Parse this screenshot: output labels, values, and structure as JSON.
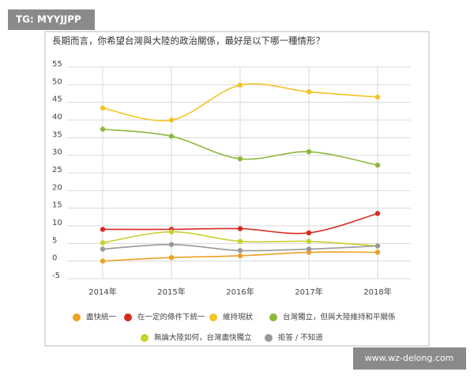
{
  "watermark": "TG: MYYJJPP",
  "site": "www.wz-delong.com",
  "chart_data": {
    "type": "line",
    "title": "長期而言，你希望台灣與大陸的政治關係，最好是以下哪一種情形？",
    "categories": [
      "2014年",
      "2015年",
      "2016年",
      "2017年",
      "2018年"
    ],
    "ylim": [
      -5,
      55
    ],
    "yticks": [
      -5,
      0,
      5,
      10,
      15,
      20,
      25,
      30,
      35,
      40,
      45,
      50,
      55
    ],
    "grid": true,
    "series": [
      {
        "name": "盡快統一",
        "color": "#eca024",
        "values": [
          0,
          1,
          1.5,
          2.5,
          2.5
        ]
      },
      {
        "name": "在一定的條件下統一",
        "color": "#d62a22",
        "values": [
          9,
          9,
          9.2,
          8,
          13.5
        ]
      },
      {
        "name": "維持現狀",
        "color": "#f5c325",
        "values": [
          43.4,
          40,
          49.9,
          48,
          46.5
        ]
      },
      {
        "name": "台灣獨立，但與大陸維持和平關係",
        "color": "#8cb83a",
        "values": [
          37.4,
          35.4,
          29,
          31,
          27.2
        ]
      },
      {
        "name": "無論大陸如何，台灣盡快獨立",
        "color": "#c8d12b",
        "values": [
          5.2,
          8.3,
          5.6,
          5.6,
          4.3
        ]
      },
      {
        "name": "拒答 / 不知道",
        "color": "#999999",
        "values": [
          3.4,
          4.7,
          3,
          3.4,
          4.3
        ]
      }
    ]
  }
}
